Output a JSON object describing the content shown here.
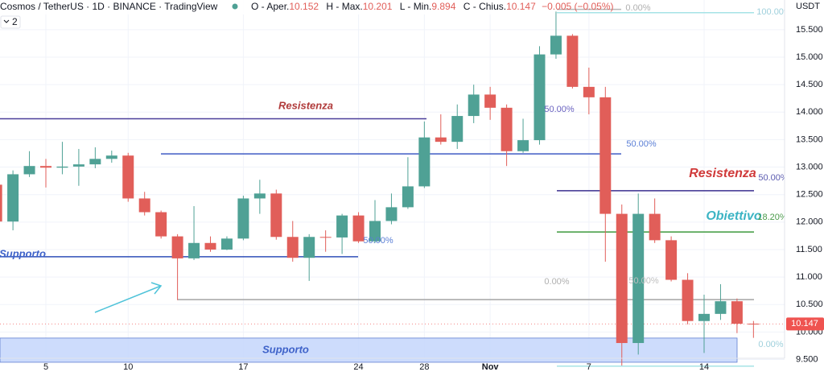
{
  "chart_data": {
    "type": "candlestick",
    "header": {
      "symbol": "Cosmos / TetherUS · 1D · BINANCE · TradingView",
      "open_label": "O - Aper.",
      "high_label": "H - Max.",
      "low_label": "L - Min.",
      "close_label": "C - Chius.",
      "change": "−0.005 (−0.05%)",
      "indicators": "2"
    },
    "currency": "USDT",
    "categories": [
      null,
      null,
      null,
      "5",
      null,
      null,
      null,
      null,
      "10",
      null,
      null,
      null,
      null,
      null,
      null,
      "17",
      null,
      null,
      null,
      null,
      null,
      null,
      "24",
      null,
      null,
      null,
      "28",
      null,
      null,
      null,
      "Nov",
      null,
      null,
      null,
      null,
      null,
      "7",
      null,
      null,
      null,
      null,
      null,
      null,
      "14",
      null,
      null,
      null
    ],
    "open": [
      12.68,
      12.01,
      12.87,
      13.02,
      12.99,
      13.01,
      13.05,
      13.15,
      13.21,
      12.43,
      12.18,
      11.74,
      11.34,
      11.62,
      11.5,
      11.7,
      12.43,
      12.52,
      11.73,
      11.35,
      11.73,
      11.72,
      12.12,
      11.65,
      12.02,
      12.27,
      12.65,
      13.54,
      13.46,
      13.93,
      14.32,
      14.08,
      13.29,
      13.49,
      15.05,
      15.39,
      14.46,
      14.27,
      12.15,
      9.8,
      12.15,
      11.67,
      10.95,
      10.2,
      10.33,
      10.56,
      10.152
    ],
    "high": [
      12.75,
      12.94,
      13.29,
      13.15,
      13.46,
      13.33,
      13.36,
      13.3,
      13.26,
      12.55,
      12.21,
      11.78,
      12.29,
      11.74,
      11.74,
      12.48,
      12.77,
      12.59,
      12.02,
      11.78,
      11.85,
      12.15,
      12.18,
      12.4,
      12.52,
      13.18,
      13.83,
      13.96,
      14.14,
      14.5,
      14.46,
      14.14,
      13.88,
      15.2,
      15.83,
      15.42,
      14.81,
      14.46,
      12.32,
      12.52,
      12.43,
      11.74,
      11.07,
      10.68,
      10.87,
      10.61,
      10.201
    ],
    "low": [
      11.95,
      11.85,
      12.82,
      12.63,
      12.87,
      12.66,
      12.98,
      13.08,
      12.37,
      12.12,
      11.7,
      10.58,
      11.31,
      11.46,
      11.49,
      11.67,
      12.15,
      11.68,
      11.28,
      10.93,
      11.46,
      11.42,
      11.62,
      11.62,
      11.96,
      12.24,
      12.62,
      13.41,
      13.33,
      13.8,
      13.86,
      13.02,
      13.26,
      13.41,
      14.97,
      14.43,
      13.96,
      11.28,
      9.39,
      9.59,
      11.62,
      10.92,
      10.14,
      9.62,
      10.22,
      9.98,
      9.894
    ],
    "close": [
      12.01,
      12.87,
      13.02,
      12.99,
      13.01,
      13.05,
      13.15,
      13.21,
      12.43,
      12.18,
      11.74,
      11.34,
      11.62,
      11.5,
      11.7,
      12.43,
      12.52,
      11.73,
      11.35,
      11.73,
      11.72,
      12.12,
      11.65,
      12.02,
      12.27,
      12.65,
      13.54,
      13.46,
      13.93,
      14.32,
      14.08,
      13.29,
      13.49,
      15.05,
      15.39,
      14.46,
      14.27,
      12.15,
      9.8,
      12.15,
      11.67,
      10.95,
      10.2,
      10.33,
      10.56,
      10.15,
      10.147
    ],
    "up_color": "#4fa195",
    "down_color": "#e15e59",
    "last_price": 10.147,
    "last_price_color": "#ef5350",
    "ylim": [
      9.2,
      16.04
    ],
    "yticks": [
      {
        "value": 9.5,
        "label": "9.500"
      },
      {
        "value": 10,
        "label": "10.000"
      },
      {
        "value": 10.5,
        "label": "10.500"
      },
      {
        "value": 11,
        "label": "11.000"
      },
      {
        "value": 11.5,
        "label": "11.500"
      },
      {
        "value": 12,
        "label": "12.000"
      },
      {
        "value": 12.5,
        "label": "12.500"
      },
      {
        "value": 13,
        "label": "13.000"
      },
      {
        "value": 13.5,
        "label": "13.500"
      },
      {
        "value": 14,
        "label": "14.000"
      },
      {
        "value": 14.5,
        "label": "14.500"
      },
      {
        "value": 15,
        "label": "15.000"
      },
      {
        "value": 15.5,
        "label": "15.500"
      }
    ],
    "grid": true,
    "levels": [
      {
        "value": 13.88,
        "color": "#4b3f9a"
      },
      {
        "value": 13.24,
        "color": "#3f5bc4"
      },
      {
        "value": 11.37,
        "color": "#2f4fb8"
      },
      {
        "value": 10.59,
        "color": "#a5a5a5"
      },
      {
        "value": 12.57,
        "color": "#3a2f8f"
      },
      {
        "value": 11.82,
        "color": "#3d9a3d"
      },
      {
        "value": 15.81,
        "color": "#a6e3e6"
      },
      {
        "value": 15.87,
        "color": "#b8b8b8"
      },
      {
        "value": 9.38,
        "color": "#a6e3e6"
      }
    ],
    "zone": {
      "from": 9.45,
      "to": 9.89,
      "label": "Supporto",
      "color": "#c4d6fb"
    },
    "annotations": [
      {
        "text": "Resistenza",
        "color": "#b03a3a"
      },
      {
        "text": "Resistenza",
        "color": "#d03a3a"
      },
      {
        "text": "Supporto",
        "color": "#3f63c9"
      },
      {
        "text": "Obiettivo",
        "color": "#3cb4c4"
      },
      {
        "text": "50.00%",
        "color": "#6a62c0"
      },
      {
        "text": "50.00%",
        "color": "#5b7fd6"
      },
      {
        "text": "50.00%",
        "color": "#5b7fd6"
      },
      {
        "text": "50.00%",
        "color": "#5b5bb0"
      },
      {
        "text": "18.20%",
        "color": "#4a9a4a"
      },
      {
        "text": "0.00%",
        "color": "#b0b0b0"
      },
      {
        "text": "50.00%",
        "color": "#c0c0c0"
      },
      {
        "text": "0.00%",
        "color": "#b0b0b0"
      },
      {
        "text": "100.00%",
        "color": "#9fd0dc"
      },
      {
        "text": "0.00%",
        "color": "#9fd0dc"
      }
    ]
  }
}
